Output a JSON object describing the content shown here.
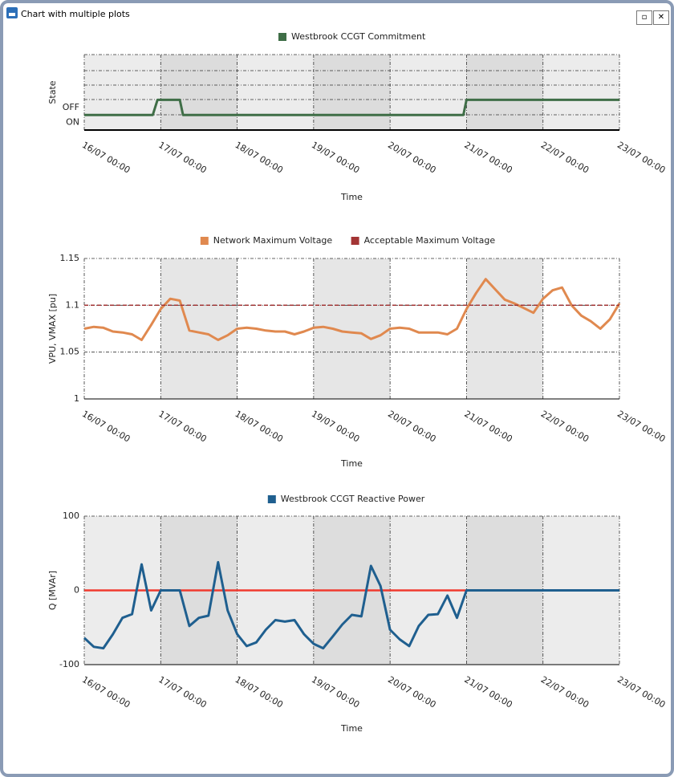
{
  "window": {
    "title": "Chart with multiple plots"
  },
  "chart_data": [
    {
      "type": "line",
      "title": "Westbrook CCGT Commitment",
      "xlabel": "Time",
      "ylabel": "State",
      "xlim": [
        "16/07 00:00",
        "23/07 00:00"
      ],
      "xticks": [
        "16/07 00:00",
        "17/07 00:00",
        "18/07 00:00",
        "19/07 00:00",
        "20/07 00:00",
        "21/07 00:00",
        "22/07 00:00",
        "23/07 00:00"
      ],
      "ylim": [
        -0.5,
        4.5
      ],
      "yticks": [
        {
          "value": 0,
          "label": "ON"
        },
        {
          "value": 1,
          "label": "OFF"
        }
      ],
      "grid": true,
      "x": [
        "16/07 00:00",
        "16/07 21:30",
        "16/07 23:00",
        "17/07 06:00",
        "17/07 07:00",
        "20/07 23:00",
        "21/07 00:00",
        "23/07 00:00"
      ],
      "series": [
        {
          "name": "Westbrook CCGT Commitment",
          "color": "#3f6e47",
          "values": [
            0.5,
            0.5,
            1.5,
            1.5,
            0.5,
            0.5,
            1.5,
            1.5
          ]
        }
      ]
    },
    {
      "type": "line",
      "xlabel": "Time",
      "ylabel": "VPU, VMAX [pu]",
      "xlim": [
        "16/07 00:00",
        "23/07 00:00"
      ],
      "xticks": [
        "16/07 00:00",
        "17/07 00:00",
        "18/07 00:00",
        "19/07 00:00",
        "20/07 00:00",
        "21/07 00:00",
        "22/07 00:00",
        "23/07 00:00"
      ],
      "ylim": [
        1,
        1.15
      ],
      "yticks": [
        1,
        1.05,
        1.1,
        1.15
      ],
      "grid": true,
      "x": [
        "16/07 00:00",
        "16/07 03:00",
        "16/07 06:00",
        "16/07 09:00",
        "16/07 12:00",
        "16/07 15:00",
        "16/07 18:00",
        "16/07 21:00",
        "17/07 00:00",
        "17/07 03:00",
        "17/07 06:00",
        "17/07 09:00",
        "17/07 12:00",
        "17/07 15:00",
        "17/07 18:00",
        "17/07 21:00",
        "18/07 00:00",
        "18/07 03:00",
        "18/07 06:00",
        "18/07 09:00",
        "18/07 12:00",
        "18/07 15:00",
        "18/07 18:00",
        "18/07 21:00",
        "19/07 00:00",
        "19/07 03:00",
        "19/07 06:00",
        "19/07 09:00",
        "19/07 12:00",
        "19/07 15:00",
        "19/07 18:00",
        "19/07 21:00",
        "20/07 00:00",
        "20/07 03:00",
        "20/07 06:00",
        "20/07 09:00",
        "20/07 12:00",
        "20/07 15:00",
        "20/07 18:00",
        "20/07 21:00",
        "21/07 00:00",
        "21/07 03:00",
        "21/07 06:00",
        "21/07 09:00",
        "21/07 12:00",
        "21/07 15:00",
        "21/07 18:00",
        "21/07 21:00",
        "22/07 00:00",
        "22/07 03:00",
        "22/07 06:00",
        "22/07 09:00",
        "22/07 12:00",
        "22/07 15:00",
        "22/07 18:00",
        "22/07 21:00",
        "23/07 00:00"
      ],
      "series": [
        {
          "name": "Network Maximum Voltage",
          "color": "#e0894f",
          "values": [
            1.075,
            1.077,
            1.076,
            1.072,
            1.071,
            1.069,
            1.063,
            1.079,
            1.096,
            1.107,
            1.105,
            1.073,
            1.071,
            1.069,
            1.063,
            1.068,
            1.075,
            1.076,
            1.075,
            1.073,
            1.072,
            1.072,
            1.069,
            1.072,
            1.076,
            1.077,
            1.075,
            1.072,
            1.071,
            1.07,
            1.064,
            1.068,
            1.075,
            1.076,
            1.075,
            1.071,
            1.071,
            1.071,
            1.069,
            1.075,
            1.096,
            1.113,
            1.128,
            1.117,
            1.106,
            1.102,
            1.097,
            1.092,
            1.107,
            1.116,
            1.119,
            1.1,
            1.089,
            1.083,
            1.075,
            1.085,
            1.102
          ]
        },
        {
          "name": "Acceptable Maximum Voltage",
          "color": "#a33535",
          "dashed": true,
          "values": [
            1.1,
            1.1,
            1.1,
            1.1,
            1.1,
            1.1,
            1.1,
            1.1,
            1.1,
            1.1,
            1.1,
            1.1,
            1.1,
            1.1,
            1.1,
            1.1,
            1.1,
            1.1,
            1.1,
            1.1,
            1.1,
            1.1,
            1.1,
            1.1,
            1.1,
            1.1,
            1.1,
            1.1,
            1.1,
            1.1,
            1.1,
            1.1,
            1.1,
            1.1,
            1.1,
            1.1,
            1.1,
            1.1,
            1.1,
            1.1,
            1.1,
            1.1,
            1.1,
            1.1,
            1.1,
            1.1,
            1.1,
            1.1,
            1.1,
            1.1,
            1.1,
            1.1,
            1.1,
            1.1,
            1.1,
            1.1,
            1.1
          ]
        }
      ]
    },
    {
      "type": "line",
      "xlabel": "Time",
      "ylabel": "Q [MVAr]",
      "xlim": [
        "16/07 00:00",
        "23/07 00:00"
      ],
      "xticks": [
        "16/07 00:00",
        "17/07 00:00",
        "18/07 00:00",
        "19/07 00:00",
        "20/07 00:00",
        "21/07 00:00",
        "22/07 00:00",
        "23/07 00:00"
      ],
      "ylim": [
        -100,
        100
      ],
      "yticks": [
        -100,
        0,
        100
      ],
      "grid": true,
      "zero_line_color": "#f03a2e",
      "x": [
        "16/07 00:00",
        "16/07 03:00",
        "16/07 06:00",
        "16/07 09:00",
        "16/07 12:00",
        "16/07 15:00",
        "16/07 18:00",
        "16/07 21:00",
        "17/07 00:00",
        "17/07 03:00",
        "17/07 06:00",
        "17/07 09:00",
        "17/07 12:00",
        "17/07 15:00",
        "17/07 18:00",
        "17/07 21:00",
        "18/07 00:00",
        "18/07 03:00",
        "18/07 06:00",
        "18/07 09:00",
        "18/07 12:00",
        "18/07 15:00",
        "18/07 18:00",
        "18/07 21:00",
        "19/07 00:00",
        "19/07 03:00",
        "19/07 06:00",
        "19/07 09:00",
        "19/07 12:00",
        "19/07 15:00",
        "19/07 18:00",
        "19/07 21:00",
        "20/07 00:00",
        "20/07 03:00",
        "20/07 06:00",
        "20/07 09:00",
        "20/07 12:00",
        "20/07 15:00",
        "20/07 18:00",
        "20/07 21:00",
        "21/07 00:00",
        "21/07 03:00",
        "21/07 06:00",
        "21/07 09:00",
        "21/07 12:00",
        "21/07 15:00",
        "21/07 18:00",
        "21/07 21:00",
        "22/07 00:00",
        "22/07 03:00",
        "22/07 06:00",
        "22/07 09:00",
        "22/07 12:00",
        "22/07 15:00",
        "22/07 18:00",
        "22/07 21:00",
        "23/07 00:00"
      ],
      "series": [
        {
          "name": "Westbrook CCGT Reactive Power",
          "color": "#1f5f8f",
          "values": [
            -64,
            -76,
            -78,
            -59,
            -37,
            -32,
            35,
            -27,
            0,
            0,
            0,
            -48,
            -37,
            -34,
            38,
            -27,
            -59,
            -75,
            -70,
            -53,
            -40,
            -42,
            -40,
            -59,
            -72,
            -78,
            -62,
            -46,
            -33,
            -35,
            33,
            6,
            -53,
            -66,
            -75,
            -48,
            -33,
            -32,
            -7,
            -37,
            0,
            0,
            0,
            0,
            0,
            0,
            0,
            0,
            0,
            0,
            0,
            0,
            0,
            0,
            0,
            0,
            0
          ]
        }
      ]
    }
  ]
}
